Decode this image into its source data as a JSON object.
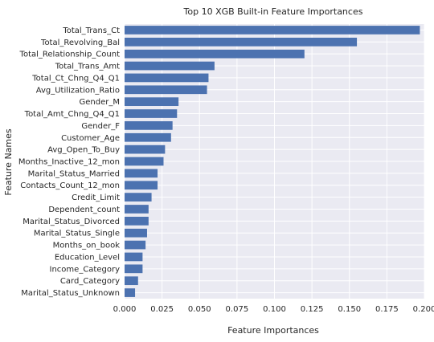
{
  "chart_data": {
    "type": "bar",
    "orientation": "horizontal",
    "title": "Top 10 XGB Built-in Feature Importances",
    "xlabel": "Feature Importances",
    "ylabel": "Feature Names",
    "xlim": [
      0,
      0.2
    ],
    "xticks": [
      0.0,
      0.025,
      0.05,
      0.075,
      0.1,
      0.125,
      0.15,
      0.175,
      0.2
    ],
    "xtick_labels": [
      "0.000",
      "0.025",
      "0.050",
      "0.075",
      "0.100",
      "0.125",
      "0.150",
      "0.175",
      "0.200"
    ],
    "grid": true,
    "bar_color": "#4c72b0",
    "background_color": "#eaeaf2",
    "grid_color": "#ffffff",
    "categories": [
      "Total_Trans_Ct",
      "Total_Revolving_Bal",
      "Total_Relationship_Count",
      "Total_Trans_Amt",
      "Total_Ct_Chng_Q4_Q1",
      "Avg_Utilization_Ratio",
      "Gender_M",
      "Total_Amt_Chng_Q4_Q1",
      "Gender_F",
      "Customer_Age",
      "Avg_Open_To_Buy",
      "Months_Inactive_12_mon",
      "Marital_Status_Married",
      "Contacts_Count_12_mon",
      "Credit_Limit",
      "Dependent_count",
      "Marital_Status_Divorced",
      "Marital_Status_Single",
      "Months_on_book",
      "Education_Level",
      "Income_Category",
      "Card_Category",
      "Marital_Status_Unknown"
    ],
    "values": [
      0.197,
      0.155,
      0.12,
      0.06,
      0.056,
      0.055,
      0.036,
      0.035,
      0.032,
      0.031,
      0.027,
      0.026,
      0.022,
      0.022,
      0.018,
      0.016,
      0.016,
      0.015,
      0.014,
      0.012,
      0.012,
      0.009,
      0.007
    ]
  }
}
